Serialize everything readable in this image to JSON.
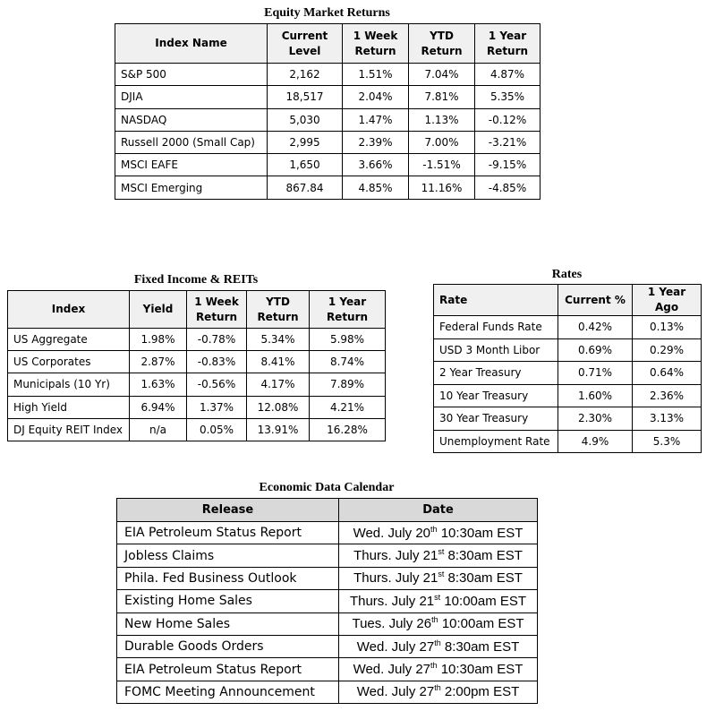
{
  "equity": {
    "title": "Equity Market Returns",
    "columns": [
      "Index Name",
      "Current Level",
      "1 Week Return",
      "YTD Return",
      "1 Year Return"
    ],
    "rows": [
      [
        "S&P 500",
        "2,162",
        "1.51%",
        "7.04%",
        "4.87%"
      ],
      [
        "DJIA",
        "18,517",
        "2.04%",
        "7.81%",
        "5.35%"
      ],
      [
        "NASDAQ",
        "5,030",
        "1.47%",
        "1.13%",
        "-0.12%"
      ],
      [
        "Russell 2000 (Small Cap)",
        "2,995",
        "2.39%",
        "7.00%",
        "-3.21%"
      ],
      [
        "MSCI EAFE",
        "1,650",
        "3.66%",
        "-1.51%",
        "-9.15%"
      ],
      [
        "MSCI Emerging",
        "867.84",
        "4.85%",
        "11.16%",
        "-4.85%"
      ]
    ]
  },
  "fixed_income": {
    "title": "Fixed Income & REITs",
    "columns": [
      "Index",
      "Yield",
      "1 Week Return",
      "YTD Return",
      "1 Year Return"
    ],
    "rows": [
      [
        "US Aggregate",
        "1.98%",
        "-0.78%",
        "5.34%",
        "5.98%"
      ],
      [
        "US Corporates",
        "2.87%",
        "-0.83%",
        "8.41%",
        "8.74%"
      ],
      [
        "Municipals (10 Yr)",
        "1.63%",
        "-0.56%",
        "4.17%",
        "7.89%"
      ],
      [
        "High Yield",
        "6.94%",
        "1.37%",
        "12.08%",
        "4.21%"
      ],
      [
        "DJ Equity REIT Index",
        "n/a",
        "0.05%",
        "13.91%",
        "16.28%"
      ]
    ]
  },
  "rates": {
    "title": "Rates",
    "columns": [
      "Rate",
      "Current %",
      "1 Year Ago"
    ],
    "rows": [
      [
        "Federal Funds Rate",
        "0.42%",
        "0.13%"
      ],
      [
        "USD 3 Month Libor",
        "0.69%",
        "0.29%"
      ],
      [
        "2 Year Treasury",
        "0.71%",
        "0.64%"
      ],
      [
        "10 Year Treasury",
        "1.60%",
        "2.36%"
      ],
      [
        "30 Year Treasury",
        "2.30%",
        "3.13%"
      ],
      [
        "Unemployment Rate",
        "4.9%",
        "5.3%"
      ]
    ]
  },
  "calendar": {
    "title": "Economic Data Calendar",
    "columns": [
      "Release",
      "Date"
    ],
    "rows": [
      {
        "release": "EIA Petroleum Status Report",
        "date": {
          "day": "Wed. July 20",
          "suffix": "th",
          "time": "10:30am EST"
        }
      },
      {
        "release": "Jobless Claims",
        "date": {
          "day": "Thurs. July 21",
          "suffix": "st",
          "time": "8:30am EST"
        }
      },
      {
        "release": "Phila. Fed Business Outlook",
        "date": {
          "day": "Thurs. July 21",
          "suffix": "st",
          "time": "8:30am EST"
        }
      },
      {
        "release": "Existing Home Sales",
        "date": {
          "day": "Thurs. July 21",
          "suffix": "st",
          "time": "10:00am EST"
        }
      },
      {
        "release": "New Home Sales",
        "date": {
          "day": "Tues. July 26",
          "suffix": "th",
          "time": "10:00am EST"
        }
      },
      {
        "release": "Durable Goods Orders",
        "date": {
          "day": "Wed. July 27",
          "suffix": "th",
          "time": "8:30am EST"
        }
      },
      {
        "release": "EIA Petroleum Status Report",
        "date": {
          "day": "Wed. July 27",
          "suffix": "th",
          "time": "10:30am EST"
        }
      },
      {
        "release": "FOMC Meeting Announcement",
        "date": {
          "day": "Wed. July 27",
          "suffix": "th",
          "time": "2:00pm EST"
        }
      }
    ]
  }
}
